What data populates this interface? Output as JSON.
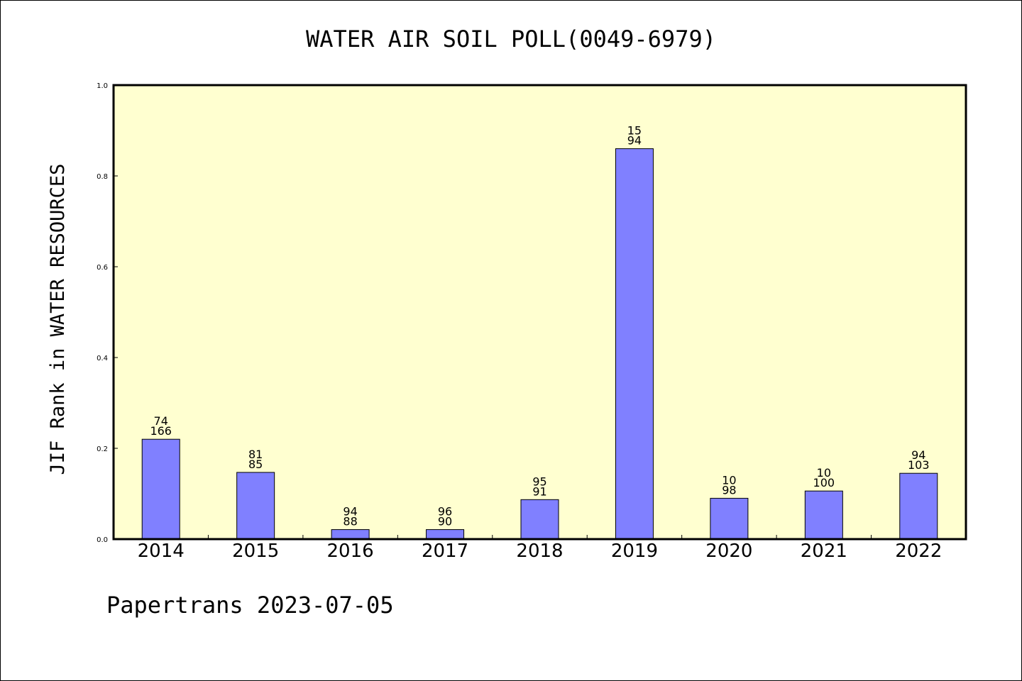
{
  "chart_data": {
    "type": "bar",
    "title": "WATER AIR SOIL POLL(0049-6979)",
    "ylabel": "JIF Rank in WATER RESOURCES",
    "xlabel": "",
    "footer": "Papertrans 2023-07-05",
    "categories": [
      "2014",
      "2015",
      "2016",
      "2017",
      "2018",
      "2019",
      "2020",
      "2021",
      "2022"
    ],
    "values": [
      0.22,
      0.147,
      0.021,
      0.021,
      0.087,
      0.86,
      0.09,
      0.106,
      0.145
    ],
    "labels_top": [
      "74",
      "81",
      "94",
      "96",
      "95",
      "15",
      "10",
      "10",
      "94"
    ],
    "labels_bottom": [
      "166",
      "85",
      "88",
      "90",
      "91",
      "94",
      "98",
      "100",
      "103"
    ],
    "ylim": [
      0,
      1.0
    ],
    "yticks": [
      "0.0",
      "0.2",
      "0.4",
      "0.6",
      "0.8",
      "1.0"
    ],
    "grid": false,
    "colors": {
      "plot_background": "#ffffd0",
      "bar_fill": "#8080ff",
      "bar_stroke": "#000000",
      "axis": "#000000"
    }
  }
}
